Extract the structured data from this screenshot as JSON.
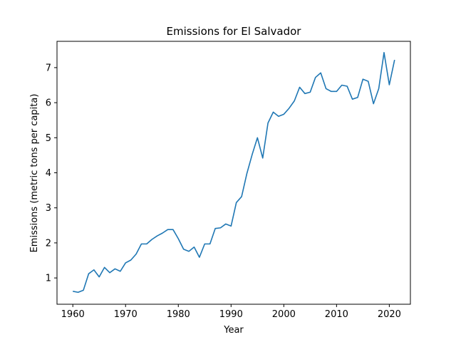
{
  "chart_data": {
    "type": "line",
    "title": "Emissions for El Salvador",
    "xlabel": "Year",
    "ylabel": "Emissions (metric tons per capita)",
    "xlim": [
      1957,
      2024
    ],
    "ylim": [
      0.25,
      7.75
    ],
    "xticks": [
      1960,
      1970,
      1980,
      1990,
      2000,
      2010,
      2020
    ],
    "yticks": [
      1,
      2,
      3,
      4,
      5,
      6,
      7
    ],
    "grid": false,
    "line_color": "#1f77b4",
    "series": [
      {
        "x": [
          1960,
          1961,
          1962,
          1963,
          1964,
          1965,
          1966,
          1967,
          1968,
          1969,
          1970,
          1971,
          1972,
          1973,
          1974,
          1975,
          1976,
          1977,
          1978,
          1979,
          1980,
          1981,
          1982,
          1983,
          1984,
          1985,
          1986,
          1987,
          1988,
          1989,
          1990,
          1991,
          1992,
          1993,
          1994,
          1995,
          1996,
          1997,
          1998,
          1999,
          2000,
          2001,
          2002,
          2003,
          2004,
          2005,
          2006,
          2007,
          2008,
          2009,
          2010,
          2011,
          2012,
          2013,
          2014,
          2015,
          2016,
          2017,
          2018,
          2019,
          2020,
          2021
        ],
        "values": [
          0.62,
          0.59,
          0.65,
          1.12,
          1.23,
          1.03,
          1.3,
          1.15,
          1.26,
          1.19,
          1.43,
          1.51,
          1.68,
          1.97,
          1.97,
          2.1,
          2.2,
          2.28,
          2.38,
          2.38,
          2.12,
          1.82,
          1.76,
          1.88,
          1.59,
          1.97,
          1.97,
          2.41,
          2.43,
          2.54,
          2.48,
          3.15,
          3.32,
          3.98,
          4.52,
          5.0,
          4.42,
          5.42,
          5.73,
          5.61,
          5.67,
          5.84,
          6.05,
          6.44,
          6.26,
          6.3,
          6.72,
          6.85,
          6.4,
          6.32,
          6.32,
          6.5,
          6.47,
          6.1,
          6.15,
          6.67,
          6.61,
          5.97,
          6.4,
          7.43,
          6.51,
          7.22
        ]
      }
    ]
  }
}
